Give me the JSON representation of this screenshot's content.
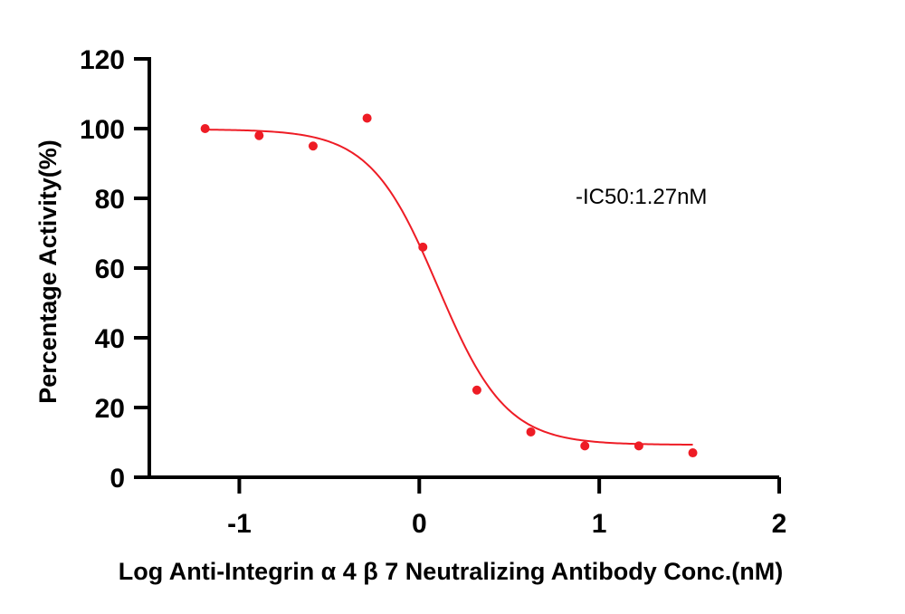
{
  "chart_data": {
    "type": "scatter",
    "xlabel": "Log Anti-Integrin  α 4 β 7 Neutralizing Antibody Conc.(nM)",
    "ylabel": "Percentage Activity(%)",
    "annotation": "-IC50:1.27nM",
    "xlim": [
      -1.5,
      2
    ],
    "ylim": [
      0,
      120
    ],
    "x_ticks": [
      -1,
      0,
      1,
      2
    ],
    "x_tick_labels": [
      "-1",
      "0",
      "1",
      "2"
    ],
    "y_ticks": [
      0,
      20,
      40,
      60,
      80,
      100,
      120
    ],
    "y_tick_labels": [
      "0",
      "20",
      "40",
      "60",
      "80",
      "100",
      "120"
    ],
    "grid": false,
    "color": "#ee1c25",
    "series": [
      {
        "type": "scatter",
        "x": [
          -1.19,
          -0.89,
          -0.59,
          -0.29,
          0.02,
          0.32,
          0.62,
          0.92,
          1.22,
          1.52
        ],
        "y": [
          100,
          98,
          95,
          103,
          66,
          25,
          13,
          9,
          9,
          7
        ]
      }
    ],
    "fit": {
      "type": "four-parameter-logistic",
      "top": 99.8,
      "bottom": 9.3,
      "log_ic50": 0.104,
      "hill_slope": -2.3,
      "x_range": [
        -1.19,
        1.52
      ]
    }
  }
}
